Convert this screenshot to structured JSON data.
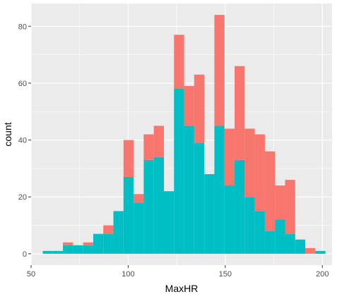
{
  "chart_data": {
    "type": "bar",
    "subtype": "stacked-histogram",
    "xlabel": "MaxHR",
    "ylabel": "count",
    "xlim": [
      50,
      205
    ],
    "ylim": [
      -4,
      88
    ],
    "x_ticks": [
      50,
      100,
      150,
      200
    ],
    "y_ticks": [
      0,
      20,
      40,
      60,
      80
    ],
    "x_tick_labels": [
      "50",
      "100",
      "150",
      "200"
    ],
    "y_tick_labels": [
      "0",
      "20",
      "40",
      "60",
      "80"
    ],
    "grid": true,
    "legend": "none",
    "bins": [
      {
        "x0": 56.0,
        "x1": 61.2
      },
      {
        "x0": 61.2,
        "x1": 66.4
      },
      {
        "x0": 66.4,
        "x1": 71.6
      },
      {
        "x0": 71.6,
        "x1": 76.8
      },
      {
        "x0": 76.8,
        "x1": 82.0
      },
      {
        "x0": 82.0,
        "x1": 87.2
      },
      {
        "x0": 87.2,
        "x1": 92.4
      },
      {
        "x0": 92.4,
        "x1": 97.6
      },
      {
        "x0": 97.6,
        "x1": 102.8
      },
      {
        "x0": 102.8,
        "x1": 108.0
      },
      {
        "x0": 108.0,
        "x1": 113.2
      },
      {
        "x0": 113.2,
        "x1": 118.4
      },
      {
        "x0": 118.4,
        "x1": 123.6
      },
      {
        "x0": 123.6,
        "x1": 128.8
      },
      {
        "x0": 128.8,
        "x1": 134.0
      },
      {
        "x0": 134.0,
        "x1": 139.2
      },
      {
        "x0": 139.2,
        "x1": 144.4
      },
      {
        "x0": 144.4,
        "x1": 149.6
      },
      {
        "x0": 149.6,
        "x1": 154.8
      },
      {
        "x0": 154.8,
        "x1": 160.0
      },
      {
        "x0": 160.0,
        "x1": 165.2
      },
      {
        "x0": 165.2,
        "x1": 170.4
      },
      {
        "x0": 170.4,
        "x1": 175.6
      },
      {
        "x0": 175.6,
        "x1": 180.8
      },
      {
        "x0": 180.8,
        "x1": 186.0
      },
      {
        "x0": 186.0,
        "x1": 191.2
      },
      {
        "x0": 191.2,
        "x1": 196.4
      },
      {
        "x0": 196.4,
        "x1": 201.6
      }
    ],
    "series": [
      {
        "color": "#00BFC4",
        "values": [
          1,
          1,
          3,
          3,
          3,
          7,
          7,
          15,
          27,
          18,
          33,
          34,
          22,
          58,
          45,
          39,
          28,
          45,
          24,
          33,
          20,
          15,
          8,
          12,
          7,
          5,
          0,
          1
        ]
      },
      {
        "color": "#F8766D",
        "values": [
          0,
          0,
          1,
          0,
          1,
          0,
          3,
          0,
          13,
          3,
          9,
          11,
          0,
          19,
          14,
          24,
          0,
          39,
          20,
          33,
          24,
          27,
          28,
          12,
          19,
          0,
          2,
          0
        ]
      }
    ]
  }
}
